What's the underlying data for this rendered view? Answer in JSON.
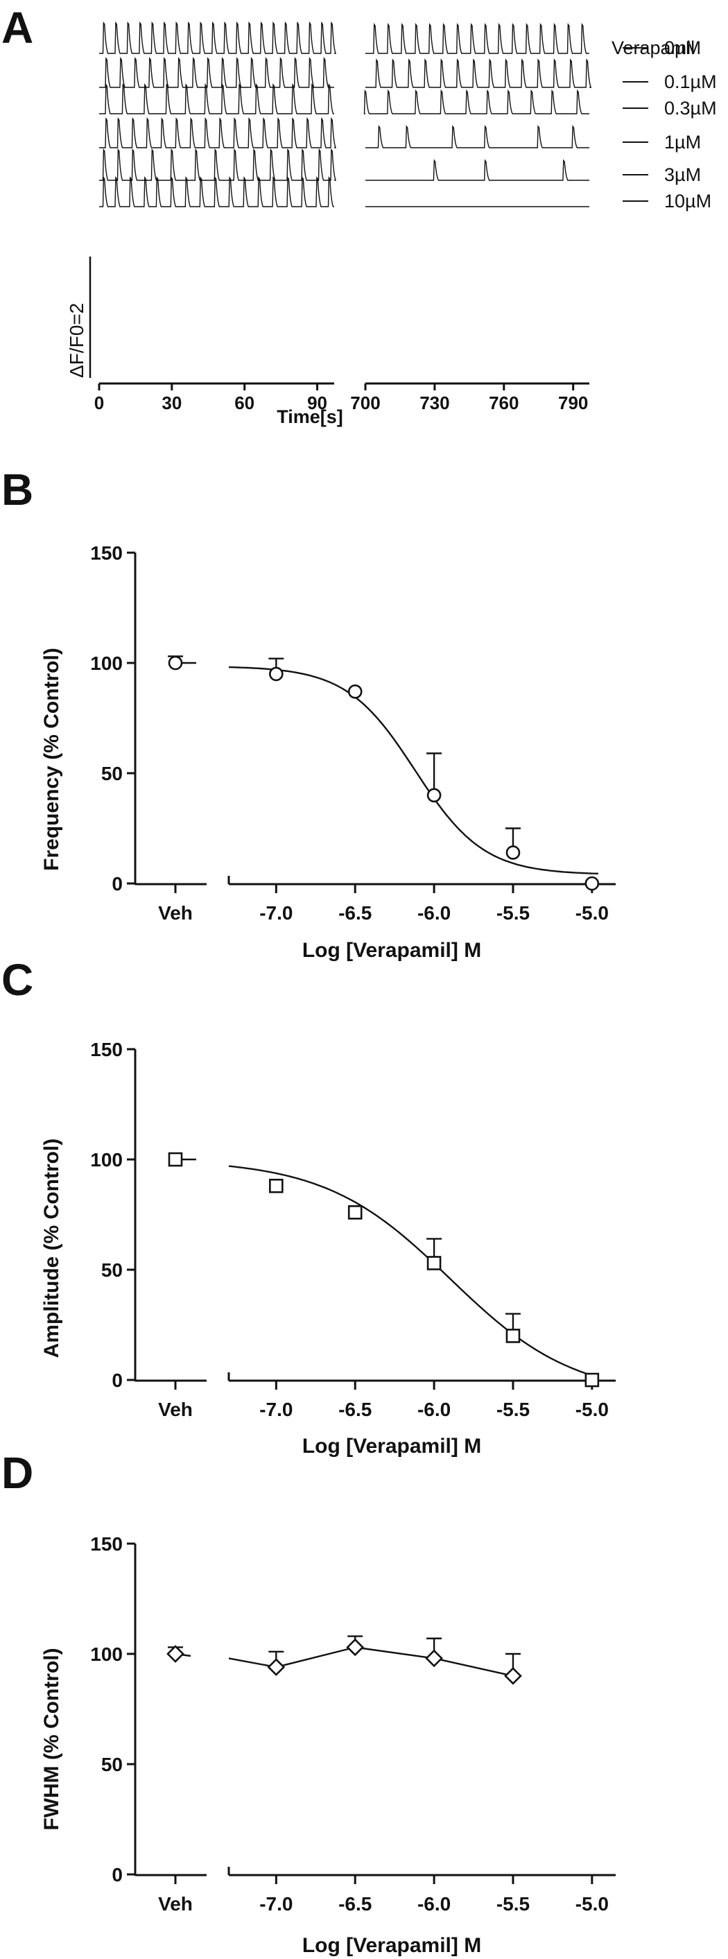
{
  "chart_data": [
    {
      "panel": "A",
      "type": "line",
      "description": "Calcium transient traces (deltaF/F0) under increasing verapamil concentrations",
      "legend_title": "Verapamil",
      "scale_label": "ΔF/F0=2",
      "xlabel": "Time[s]",
      "left_window_ticks": [
        "0",
        "30",
        "60",
        "90"
      ],
      "right_window_ticks": [
        "700",
        "730",
        "760",
        "790"
      ],
      "left_window_range": [
        0,
        97
      ],
      "right_window_range": [
        700,
        797
      ],
      "traces": [
        {
          "concentration": "0µM",
          "left_peak_times": [
            2,
            7,
            12,
            17,
            22,
            27,
            32,
            37,
            42,
            47,
            52,
            57,
            62,
            67,
            72,
            77,
            82,
            87,
            92,
            96
          ],
          "right_peak_times": [
            704,
            710,
            716,
            722,
            728,
            734,
            740,
            746,
            752,
            758,
            764,
            770,
            776,
            782,
            788,
            794
          ],
          "left_amp": 1.0,
          "right_amp": 0.95
        },
        {
          "concentration": "0.1µM",
          "left_peak_times": [
            3,
            9,
            15,
            21,
            27,
            33,
            39,
            45,
            51,
            57,
            63,
            69,
            75,
            81,
            87,
            93
          ],
          "right_peak_times": [
            705,
            712,
            719,
            726,
            733,
            740,
            747,
            754,
            761,
            768,
            775,
            782,
            789,
            796
          ],
          "left_amp": 0.95,
          "right_amp": 0.9
        },
        {
          "concentration": "0.3µM",
          "left_peak_times": [
            3,
            10,
            19,
            28,
            36,
            44,
            51,
            58,
            65,
            72,
            80,
            88,
            95
          ],
          "right_peak_times": [
            700,
            710,
            722,
            733,
            744,
            753,
            762,
            772,
            781,
            792
          ],
          "left_amp": 0.95,
          "right_amp": 0.75
        },
        {
          "concentration": "1µM",
          "left_peak_times": [
            3,
            8,
            14,
            20,
            26,
            32,
            38,
            44,
            50,
            56,
            62,
            68,
            74,
            80,
            86,
            92,
            96
          ],
          "right_peak_times": [
            706,
            718,
            738,
            752,
            775,
            790
          ],
          "left_amp": 0.95,
          "right_amp": 0.7
        },
        {
          "concentration": "3µM",
          "left_peak_times": [
            2,
            8,
            14,
            22,
            30,
            40,
            48,
            56,
            64,
            71,
            78,
            84,
            91,
            96
          ],
          "right_peak_times": [
            730,
            752,
            786
          ],
          "left_amp": 1.0,
          "right_amp": 0.65
        },
        {
          "concentration": "10µM",
          "left_peak_times": [
            2,
            7,
            13,
            19,
            24,
            30,
            36,
            42,
            48,
            54,
            60,
            66,
            72,
            78,
            84,
            90,
            95
          ],
          "right_peak_times": [],
          "left_amp": 0.95,
          "right_amp": 0
        }
      ]
    },
    {
      "panel": "B",
      "type": "scatter",
      "title": "",
      "xlabel": "Log [Verapamil] M",
      "ylabel": "Frequency (% Control)",
      "ylim": [
        0,
        150
      ],
      "xlim": [
        -7.3,
        -4.85
      ],
      "yticks": [
        "0",
        "50",
        "100",
        "150"
      ],
      "xticks": [
        "-7.0",
        "-6.5",
        "-6.0",
        "-5.5",
        "-5.0"
      ],
      "veh_label": "Veh",
      "marker": "circle",
      "vehicle": {
        "y": 100,
        "err": 3
      },
      "points": [
        {
          "x": -7.0,
          "y": 95,
          "err": 7
        },
        {
          "x": -6.5,
          "y": 87,
          "err": 0
        },
        {
          "x": -6.0,
          "y": 40,
          "err": 19
        },
        {
          "x": -5.5,
          "y": 14,
          "err": 11
        },
        {
          "x": -5.0,
          "y": 0,
          "err": 0
        }
      ],
      "fit": {
        "top": 98.5,
        "bottom": 4,
        "logIC50": -6.12,
        "hill": 2.0
      }
    },
    {
      "panel": "C",
      "type": "scatter",
      "title": "",
      "xlabel": "Log [Verapamil] M",
      "ylabel": "Amplitude (% Control)",
      "ylim": [
        0,
        150
      ],
      "xlim": [
        -7.3,
        -4.85
      ],
      "yticks": [
        "0",
        "50",
        "100",
        "150"
      ],
      "xticks": [
        "-7.0",
        "-6.5",
        "-6.0",
        "-5.5",
        "-5.0"
      ],
      "veh_label": "Veh",
      "marker": "square",
      "vehicle": {
        "y": 100,
        "err": 0
      },
      "points": [
        {
          "x": -7.0,
          "y": 88,
          "err": 0
        },
        {
          "x": -6.5,
          "y": 76,
          "err": 0
        },
        {
          "x": -6.0,
          "y": 53,
          "err": 11
        },
        {
          "x": -5.5,
          "y": 20,
          "err": 10
        },
        {
          "x": -5.0,
          "y": 0,
          "err": 0
        }
      ],
      "fit": {
        "top": 100,
        "bottom": -8,
        "logIC50": -5.9,
        "hill": 1.1
      }
    },
    {
      "panel": "D",
      "type": "line",
      "title": "",
      "xlabel": "Log [Verapamil] M",
      "ylabel": "FWHM (% Control)",
      "ylim": [
        0,
        150
      ],
      "xlim": [
        -7.3,
        -4.85
      ],
      "yticks": [
        "0",
        "50",
        "100",
        "150"
      ],
      "xticks": [
        "-7.0",
        "-6.5",
        "-6.0",
        "-5.5",
        "-5.0"
      ],
      "veh_label": "Veh",
      "marker": "diamond",
      "vehicle": {
        "y": 100,
        "err": 3
      },
      "points": [
        {
          "x": -7.0,
          "y": 94,
          "err": 7
        },
        {
          "x": -6.5,
          "y": 103,
          "err": 5
        },
        {
          "x": -6.0,
          "y": 98,
          "err": 9
        },
        {
          "x": -5.5,
          "y": 90,
          "err": 10
        }
      ]
    }
  ]
}
